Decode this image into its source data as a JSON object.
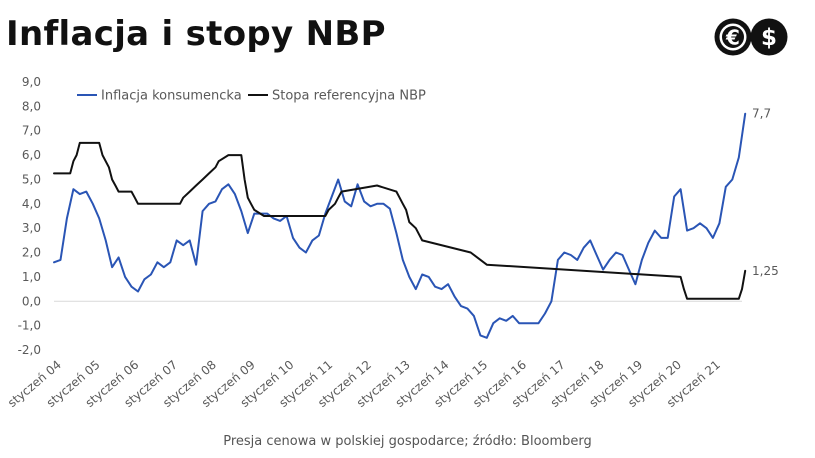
{
  "title": "Inflacja i stopy NBP",
  "footer": "Presja cenowa w polskiej gospodarce; źródło: Bloomberg",
  "logo": {
    "icons": [
      "euro-icon",
      "dollar-icon"
    ],
    "glyphs": [
      "€",
      "$"
    ]
  },
  "chart_data": {
    "type": "line",
    "title": "Inflacja i stopy NBP",
    "xlabel": "",
    "ylabel": "",
    "ylim": [
      -2,
      9
    ],
    "yticks": [
      "-2,0",
      "-1,0",
      "0,0",
      "1,0",
      "2,0",
      "3,0",
      "4,0",
      "5,0",
      "6,0",
      "7,0",
      "8,0",
      "9,0"
    ],
    "xticks": [
      "styczeń 04",
      "styczeń 05",
      "styczeń 06",
      "styczeń 07",
      "styczeń 08",
      "styczeń 09",
      "styczeń 10",
      "styczeń 11",
      "styczeń 12",
      "styczeń 13",
      "styczeń 14",
      "styczeń 15",
      "styczeń 16",
      "styczeń 17",
      "styczeń 18",
      "styczeń 19",
      "styczeń 20",
      "styczeń 21"
    ],
    "x_range": [
      "2004-01",
      "2021-10"
    ],
    "grid": false,
    "legend": "top-left",
    "series": [
      {
        "name": "Inflacja konsumencka",
        "color": "#2a55b5",
        "end_label": "7,7",
        "points": [
          [
            "2004-01",
            1.6
          ],
          [
            "2004-03",
            1.7
          ],
          [
            "2004-05",
            3.4
          ],
          [
            "2004-07",
            4.6
          ],
          [
            "2004-09",
            4.4
          ],
          [
            "2004-11",
            4.5
          ],
          [
            "2005-01",
            4.0
          ],
          [
            "2005-03",
            3.4
          ],
          [
            "2005-05",
            2.5
          ],
          [
            "2005-07",
            1.4
          ],
          [
            "2005-09",
            1.8
          ],
          [
            "2005-11",
            1.0
          ],
          [
            "2006-01",
            0.6
          ],
          [
            "2006-03",
            0.4
          ],
          [
            "2006-05",
            0.9
          ],
          [
            "2006-07",
            1.1
          ],
          [
            "2006-09",
            1.6
          ],
          [
            "2006-11",
            1.4
          ],
          [
            "2007-01",
            1.6
          ],
          [
            "2007-03",
            2.5
          ],
          [
            "2007-05",
            2.3
          ],
          [
            "2007-07",
            2.5
          ],
          [
            "2007-09",
            1.5
          ],
          [
            "2007-11",
            3.7
          ],
          [
            "2008-01",
            4.0
          ],
          [
            "2008-03",
            4.1
          ],
          [
            "2008-05",
            4.6
          ],
          [
            "2008-07",
            4.8
          ],
          [
            "2008-09",
            4.4
          ],
          [
            "2008-11",
            3.7
          ],
          [
            "2009-01",
            2.8
          ],
          [
            "2009-03",
            3.6
          ],
          [
            "2009-05",
            3.6
          ],
          [
            "2009-07",
            3.6
          ],
          [
            "2009-09",
            3.4
          ],
          [
            "2009-11",
            3.3
          ],
          [
            "2010-01",
            3.5
          ],
          [
            "2010-03",
            2.6
          ],
          [
            "2010-05",
            2.2
          ],
          [
            "2010-07",
            2.0
          ],
          [
            "2010-09",
            2.5
          ],
          [
            "2010-11",
            2.7
          ],
          [
            "2011-01",
            3.6
          ],
          [
            "2011-03",
            4.3
          ],
          [
            "2011-05",
            5.0
          ],
          [
            "2011-07",
            4.1
          ],
          [
            "2011-09",
            3.9
          ],
          [
            "2011-11",
            4.8
          ],
          [
            "2012-01",
            4.1
          ],
          [
            "2012-03",
            3.9
          ],
          [
            "2012-05",
            4.0
          ],
          [
            "2012-07",
            4.0
          ],
          [
            "2012-09",
            3.8
          ],
          [
            "2012-11",
            2.8
          ],
          [
            "2013-01",
            1.7
          ],
          [
            "2013-03",
            1.0
          ],
          [
            "2013-05",
            0.5
          ],
          [
            "2013-07",
            1.1
          ],
          [
            "2013-09",
            1.0
          ],
          [
            "2013-11",
            0.6
          ],
          [
            "2014-01",
            0.5
          ],
          [
            "2014-03",
            0.7
          ],
          [
            "2014-05",
            0.2
          ],
          [
            "2014-07",
            -0.2
          ],
          [
            "2014-09",
            -0.3
          ],
          [
            "2014-11",
            -0.6
          ],
          [
            "2015-01",
            -1.4
          ],
          [
            "2015-03",
            -1.5
          ],
          [
            "2015-05",
            -0.9
          ],
          [
            "2015-07",
            -0.7
          ],
          [
            "2015-09",
            -0.8
          ],
          [
            "2015-11",
            -0.6
          ],
          [
            "2016-01",
            -0.9
          ],
          [
            "2016-03",
            -0.9
          ],
          [
            "2016-05",
            -0.9
          ],
          [
            "2016-07",
            -0.9
          ],
          [
            "2016-09",
            -0.5
          ],
          [
            "2016-11",
            0.0
          ],
          [
            "2017-01",
            1.7
          ],
          [
            "2017-03",
            2.0
          ],
          [
            "2017-05",
            1.9
          ],
          [
            "2017-07",
            1.7
          ],
          [
            "2017-09",
            2.2
          ],
          [
            "2017-11",
            2.5
          ],
          [
            "2018-01",
            1.9
          ],
          [
            "2018-03",
            1.3
          ],
          [
            "2018-05",
            1.7
          ],
          [
            "2018-07",
            2.0
          ],
          [
            "2018-09",
            1.9
          ],
          [
            "2018-11",
            1.3
          ],
          [
            "2019-01",
            0.7
          ],
          [
            "2019-03",
            1.7
          ],
          [
            "2019-05",
            2.4
          ],
          [
            "2019-07",
            2.9
          ],
          [
            "2019-09",
            2.6
          ],
          [
            "2019-11",
            2.6
          ],
          [
            "2020-01",
            4.3
          ],
          [
            "2020-03",
            4.6
          ],
          [
            "2020-05",
            2.9
          ],
          [
            "2020-07",
            3.0
          ],
          [
            "2020-09",
            3.2
          ],
          [
            "2020-11",
            3.0
          ],
          [
            "2021-01",
            2.6
          ],
          [
            "2021-03",
            3.2
          ],
          [
            "2021-05",
            4.7
          ],
          [
            "2021-07",
            5.0
          ],
          [
            "2021-09",
            5.9
          ],
          [
            "2021-10",
            6.8
          ],
          [
            "2021-11",
            7.7
          ]
        ]
      },
      {
        "name": "Stopa referencyjna NBP",
        "color": "#111111",
        "end_label": "1,25",
        "points": [
          [
            "2004-01",
            5.25
          ],
          [
            "2004-06",
            5.25
          ],
          [
            "2004-07",
            5.75
          ],
          [
            "2004-08",
            6.0
          ],
          [
            "2004-09",
            6.5
          ],
          [
            "2005-03",
            6.5
          ],
          [
            "2005-04",
            6.0
          ],
          [
            "2005-06",
            5.5
          ],
          [
            "2005-07",
            5.0
          ],
          [
            "2005-08",
            4.75
          ],
          [
            "2005-09",
            4.5
          ],
          [
            "2006-01",
            4.5
          ],
          [
            "2006-02",
            4.25
          ],
          [
            "2006-03",
            4.0
          ],
          [
            "2007-04",
            4.0
          ],
          [
            "2007-05",
            4.25
          ],
          [
            "2007-07",
            4.5
          ],
          [
            "2007-09",
            4.75
          ],
          [
            "2007-11",
            5.0
          ],
          [
            "2008-01",
            5.25
          ],
          [
            "2008-03",
            5.5
          ],
          [
            "2008-04",
            5.75
          ],
          [
            "2008-07",
            6.0
          ],
          [
            "2008-11",
            6.0
          ],
          [
            "2008-12",
            5.0
          ],
          [
            "2009-01",
            4.25
          ],
          [
            "2009-02",
            4.0
          ],
          [
            "2009-03",
            3.75
          ],
          [
            "2009-06",
            3.5
          ],
          [
            "2011-01",
            3.5
          ],
          [
            "2011-02",
            3.75
          ],
          [
            "2011-04",
            4.0
          ],
          [
            "2011-05",
            4.25
          ],
          [
            "2011-06",
            4.5
          ],
          [
            "2012-05",
            4.75
          ],
          [
            "2012-11",
            4.5
          ],
          [
            "2012-12",
            4.25
          ],
          [
            "2013-01",
            4.0
          ],
          [
            "2013-02",
            3.75
          ],
          [
            "2013-03",
            3.25
          ],
          [
            "2013-05",
            3.0
          ],
          [
            "2013-06",
            2.75
          ],
          [
            "2013-07",
            2.5
          ],
          [
            "2014-10",
            2.0
          ],
          [
            "2015-03",
            1.5
          ],
          [
            "2020-03",
            1.0
          ],
          [
            "2020-04",
            0.5
          ],
          [
            "2020-05",
            0.1
          ],
          [
            "2021-09",
            0.1
          ],
          [
            "2021-10",
            0.5
          ],
          [
            "2021-11",
            1.25
          ]
        ]
      }
    ]
  }
}
